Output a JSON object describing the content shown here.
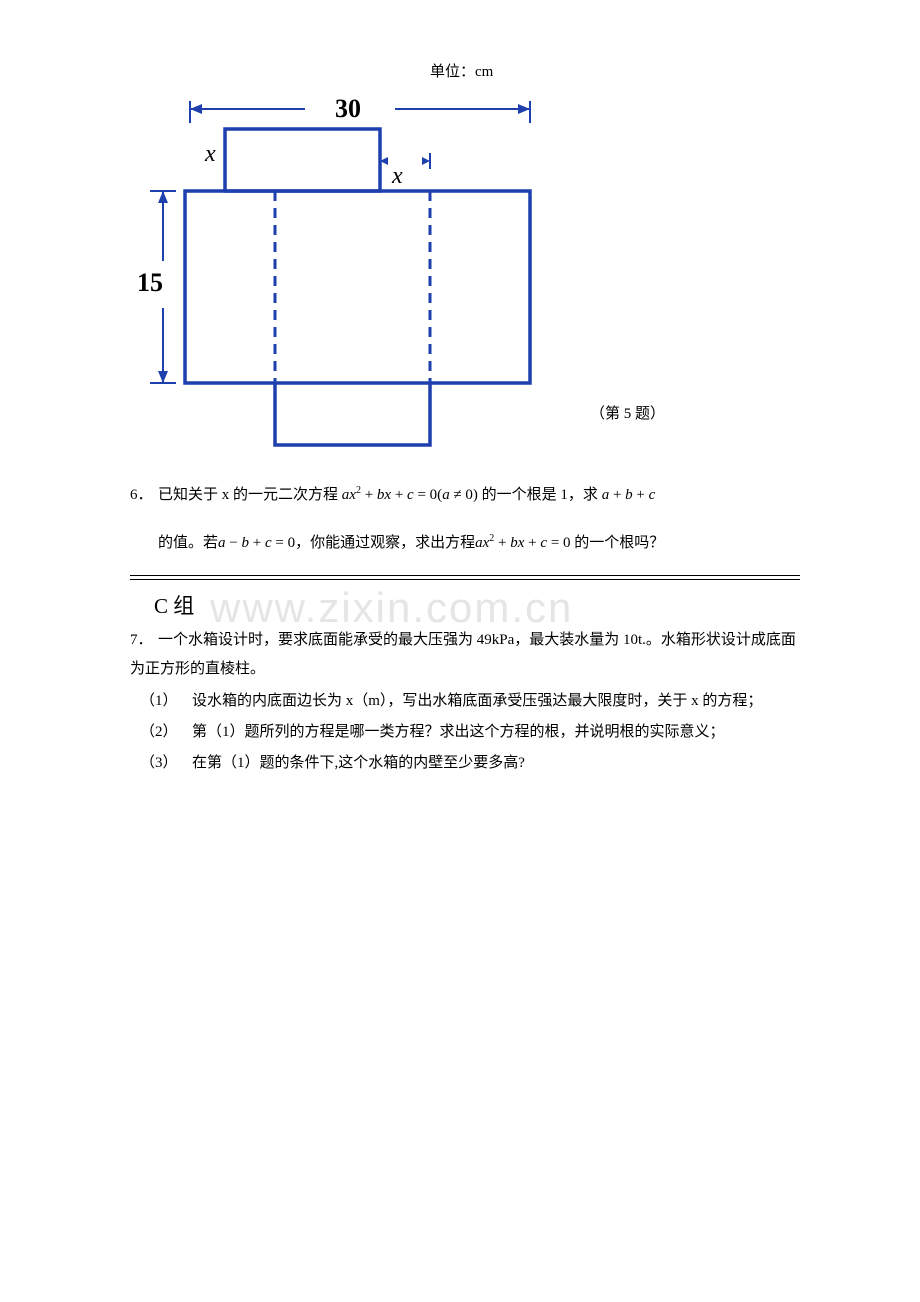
{
  "figure": {
    "unit_label": "单位：cm",
    "caption": "（第 5 题）",
    "dim_top": "30",
    "dim_left": "15",
    "x_left": "x",
    "x_right": "x",
    "stroke_color": "#1e3fae",
    "stroke_width": 3,
    "text_color": "#000000",
    "label_font_size": 22,
    "label_font_weight_bold": "bold",
    "label_font_weight_normal": "normal",
    "dash_pattern": "10,7"
  },
  "problem6": {
    "num": "6．",
    "line1_a": "已知关于 x 的一元二次方程",
    "eq1": "ax<span class='sup'>2</span><span class='op'> + </span>bx<span class='op'> + </span>c<span class='op'> = 0(</span>a<span class='op'> ≠ 0)</span>",
    "line1_b": "的一个根是 1，求",
    "eq2": "a<span class='op'> + </span>b<span class='op'> + </span>c",
    "line2_a": "的值。若",
    "eq3": "a<span class='op'> − </span>b<span class='op'> + </span>c<span class='op'> = 0</span>",
    "line2_b": "，你能通过观察，求出方程",
    "eq4": "ax<span class='sup'>2</span><span class='op'> + </span>bx<span class='op'> + </span>c<span class='op'> = 0</span>",
    "line2_c": " 的一个根吗？"
  },
  "groupC": {
    "title_en": "C",
    "title_cn": " 组"
  },
  "problem7": {
    "num": "7．",
    "intro": "一个水箱设计时，要求底面能承受的最大压强为 49kPa，最大装水量为 10t.。水箱形状设计成底面为正方形的直棱柱。",
    "s1_num": "（1）",
    "s1_text": "设水箱的内底面边长为 x（m），写出水箱底面承受压强达最大限度时，关于 x 的方程；",
    "s2_num": "（2）",
    "s2_text": "第（1）题所列的方程是哪一类方程？求出这个方程的根，并说明根的实际意义；",
    "s3_num": "（3）",
    "s3_text": "在第（1）题的条件下,这个水箱的内壁至少要多高?"
  },
  "watermark_text": "www.zixin.com.cn"
}
